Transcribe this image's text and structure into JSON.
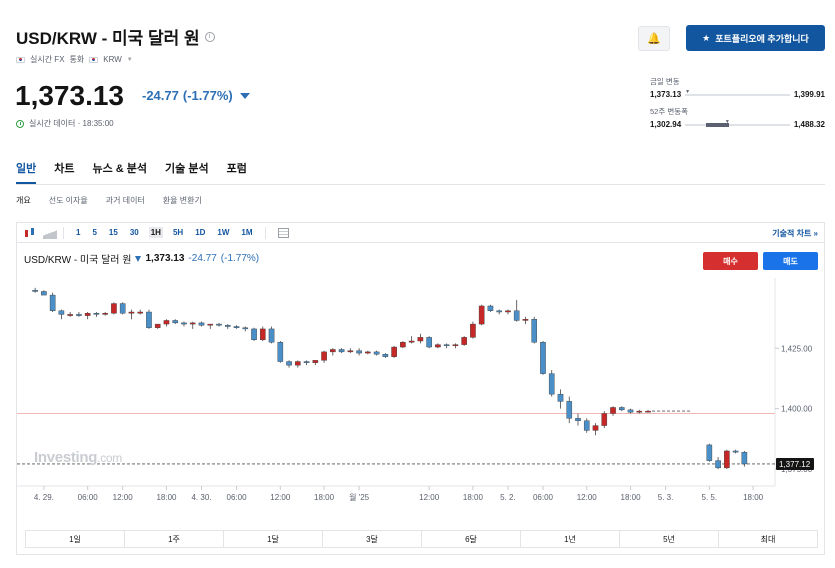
{
  "header": {
    "title": "USD/KRW - 미국 달러 원",
    "info_glyph": "i",
    "source": "실시간 FX",
    "currency_label": "통화",
    "currency": "KRW",
    "price": "1,373.13",
    "change": "-24.77",
    "change_pct": "(-1.77%)",
    "realtime": "실시간 데이터 · 18:35:00",
    "alert_glyph": "🔔",
    "add_portfolio": "포트폴리오에 추가합니다",
    "star_glyph": "★"
  },
  "ranges": {
    "day": {
      "label": "금일 변동",
      "low": "1,373.13",
      "high": "1,399.91",
      "fraction": 0.0
    },
    "week52": {
      "label": "52주 변동폭",
      "low": "1,302.94",
      "high": "1,488.32",
      "fraction": 0.38
    }
  },
  "tabs": [
    "일반",
    "차트",
    "뉴스 & 분석",
    "기술 분석",
    "포럼"
  ],
  "subtabs": [
    "개요",
    "선도 이자율",
    "과거 데이터",
    "환율 변환기"
  ],
  "toolbar": {
    "intervals": [
      "1",
      "5",
      "15",
      "30",
      "1H",
      "5H",
      "1D",
      "1W",
      "1M"
    ],
    "active_interval": "1H",
    "tech_chart": "기술적 차트 »"
  },
  "chart_legend": {
    "name": "USD/KRW - 미국 달러 원",
    "price": "1,373.13",
    "change": "-24.77",
    "pct": "(-1.77%)"
  },
  "buttons": {
    "buy": "매수",
    "sell": "매도"
  },
  "watermark": {
    "brand": "Investing",
    "suffix": ".com"
  },
  "periods": [
    "1일",
    "1주",
    "1달",
    "3달",
    "6달",
    "1년",
    "5년",
    "최대"
  ],
  "colors": {
    "up": "#c62828",
    "down": "#4a8fc7",
    "accent": "#1256a0"
  },
  "chart_data": {
    "type": "candlestick",
    "ylim": [
      1368,
      1452
    ],
    "yticks": [
      {
        "v": 1425,
        "label": "1,425.00"
      },
      {
        "v": 1400,
        "label": "1,400.00"
      },
      {
        "v": 1375,
        "label": "1,375.00"
      }
    ],
    "last_price": {
      "v": 1377.12,
      "label": "1,377.12"
    },
    "ref_line": 1398,
    "xticks": [
      {
        "i": 2,
        "label": "4. 29."
      },
      {
        "i": 7,
        "label": "06:00"
      },
      {
        "i": 11,
        "label": "12:00"
      },
      {
        "i": 16,
        "label": "18:00"
      },
      {
        "i": 20,
        "label": "4. 30."
      },
      {
        "i": 24,
        "label": "06:00"
      },
      {
        "i": 29,
        "label": "12:00"
      },
      {
        "i": 34,
        "label": "18:00"
      },
      {
        "i": 38,
        "label": "월 '25"
      },
      {
        "i": 46,
        "label": "12:00"
      },
      {
        "i": 51,
        "label": "18:00"
      },
      {
        "i": 55,
        "label": "5. 2."
      },
      {
        "i": 59,
        "label": "06:00"
      },
      {
        "i": 64,
        "label": "12:00"
      },
      {
        "i": 69,
        "label": "18:00"
      },
      {
        "i": 73,
        "label": "5. 3."
      },
      {
        "i": 78,
        "label": "5. 5."
      },
      {
        "i": 83,
        "label": "18:00"
      }
    ],
    "candles": [
      [
        1449,
        1450,
        1448,
        1448.5
      ],
      [
        1448.5,
        1449,
        1447,
        1447
      ],
      [
        1447,
        1448,
        1440,
        1440.5
      ],
      [
        1440.5,
        1441,
        1437,
        1439
      ],
      [
        1439,
        1440,
        1438,
        1439
      ],
      [
        1439,
        1440,
        1438,
        1438.5
      ],
      [
        1438.5,
        1440,
        1437,
        1439.5
      ],
      [
        1439.5,
        1440,
        1438,
        1439
      ],
      [
        1439,
        1440,
        1438.5,
        1439.5
      ],
      [
        1439.5,
        1444,
        1439,
        1443.5
      ],
      [
        1443.5,
        1444,
        1439,
        1439.5
      ],
      [
        1439.5,
        1441,
        1437,
        1440
      ],
      [
        1440,
        1441,
        1439,
        1440
      ],
      [
        1440,
        1441,
        1433,
        1433.5
      ],
      [
        1433.5,
        1435,
        1433,
        1435
      ],
      [
        1435,
        1437,
        1434,
        1436.5
      ],
      [
        1436.5,
        1437,
        1435,
        1435.5
      ],
      [
        1435.5,
        1436,
        1434,
        1435
      ],
      [
        1435,
        1436,
        1433,
        1435.5
      ],
      [
        1435.5,
        1436,
        1434,
        1434.5
      ],
      [
        1434.5,
        1435,
        1433,
        1435
      ],
      [
        1435,
        1435.5,
        1434,
        1434.5
      ],
      [
        1434.5,
        1435,
        1433,
        1434
      ],
      [
        1434,
        1434.5,
        1433,
        1433.5
      ],
      [
        1433.5,
        1434,
        1432,
        1433
      ],
      [
        1433,
        1433.5,
        1428,
        1428.5
      ],
      [
        1428.5,
        1434,
        1428,
        1433
      ],
      [
        1433,
        1434,
        1427,
        1427.5
      ],
      [
        1427.5,
        1428,
        1419,
        1419.5
      ],
      [
        1419.5,
        1420,
        1417,
        1418
      ],
      [
        1418,
        1420,
        1417,
        1419.5
      ],
      [
        1419.5,
        1420,
        1418,
        1419
      ],
      [
        1419,
        1420,
        1418,
        1420
      ],
      [
        1420,
        1424,
        1419,
        1423.5
      ],
      [
        1423.5,
        1425,
        1422,
        1424.5
      ],
      [
        1424.5,
        1425,
        1423,
        1423.5
      ],
      [
        1423.5,
        1425,
        1423,
        1424
      ],
      [
        1424,
        1425,
        1422,
        1423
      ],
      [
        1423,
        1424,
        1422.5,
        1423.5
      ],
      [
        1423.5,
        1424,
        1422,
        1422.5
      ],
      [
        1422.5,
        1423,
        1421,
        1421.5
      ],
      [
        1421.5,
        1426,
        1421,
        1425.5
      ],
      [
        1425.5,
        1428,
        1425,
        1427.5
      ],
      [
        1427.5,
        1430,
        1427,
        1428
      ],
      [
        1428,
        1431,
        1427,
        1429.5
      ],
      [
        1429.5,
        1430,
        1425,
        1425.5
      ],
      [
        1425.5,
        1427,
        1425,
        1426.5
      ],
      [
        1426.5,
        1427,
        1425,
        1426
      ],
      [
        1426,
        1427,
        1425,
        1426.5
      ],
      [
        1426.5,
        1430,
        1426,
        1429.5
      ],
      [
        1429.5,
        1436,
        1429,
        1435
      ],
      [
        1435,
        1443,
        1434.5,
        1442.5
      ],
      [
        1442.5,
        1443,
        1440,
        1440.5
      ],
      [
        1440.5,
        1441,
        1439,
        1440
      ],
      [
        1440,
        1441,
        1439,
        1440.5
      ],
      [
        1440.5,
        1445,
        1436,
        1436.5
      ],
      [
        1436.5,
        1438,
        1435,
        1437
      ],
      [
        1437,
        1438,
        1427,
        1427.5
      ],
      [
        1427.5,
        1428,
        1414,
        1414.5
      ],
      [
        1414.5,
        1416,
        1405,
        1406
      ],
      [
        1406,
        1408,
        1400,
        1403
      ],
      [
        1403,
        1405,
        1394,
        1396
      ],
      [
        1396,
        1398,
        1393,
        1395
      ],
      [
        1395,
        1396,
        1390,
        1391
      ],
      [
        1391,
        1394,
        1389,
        1393
      ],
      [
        1393,
        1399,
        1392,
        1398
      ],
      [
        1398,
        1401,
        1397,
        1400.5
      ],
      [
        1400.5,
        1401,
        1399,
        1399.5
      ],
      [
        1399.5,
        1400,
        1398,
        1398.5
      ],
      [
        1398.5,
        1399.5,
        1398,
        1399
      ],
      [
        1399,
        1399.5,
        1398.5,
        1399
      ],
      [
        1385,
        1385.5,
        1378,
        1378.5
      ],
      [
        1378.5,
        1380,
        1375,
        1375.5
      ],
      [
        1375.5,
        1383,
        1375,
        1382.5
      ],
      [
        1382.5,
        1383,
        1381.5,
        1382
      ],
      [
        1382,
        1382.5,
        1376,
        1377.12
      ]
    ],
    "candle_x_index": [
      1,
      2,
      3,
      4,
      5,
      6,
      7,
      8,
      9,
      10,
      11,
      12,
      13,
      14,
      15,
      16,
      17,
      18,
      19,
      20,
      21,
      22,
      23,
      24,
      25,
      26,
      27,
      28,
      29,
      30,
      31,
      32,
      33,
      34,
      35,
      36,
      37,
      38,
      39,
      40,
      41,
      42,
      43,
      44,
      45,
      46,
      47,
      48,
      49,
      50,
      51,
      52,
      53,
      54,
      55,
      56,
      57,
      58,
      59,
      60,
      61,
      62,
      63,
      64,
      65,
      66,
      67,
      68,
      69,
      70,
      71,
      78,
      79,
      80,
      81,
      82
    ]
  }
}
